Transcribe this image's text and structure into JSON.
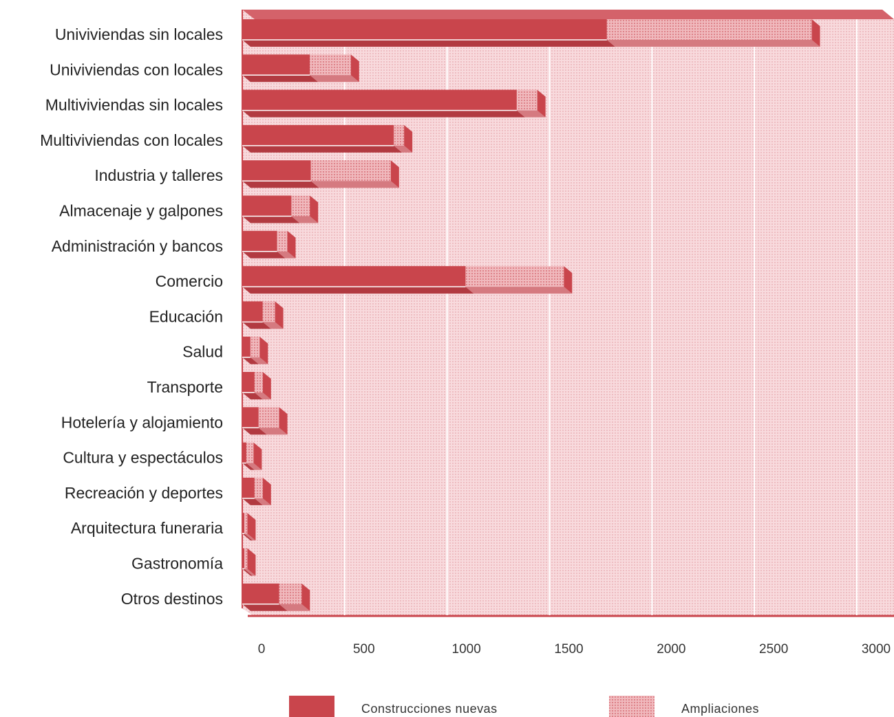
{
  "chart_data": {
    "type": "bar",
    "orientation": "horizontal",
    "stacked": true,
    "three_d": true,
    "categories": [
      "Univiviendas sin locales",
      "Univiviendas con locales",
      "Multiviviendas sin locales",
      "Multiviviendas con locales",
      "Industria y talleres",
      "Almacenaje y galpones",
      "Administración y bancos",
      "Comercio",
      "Educación",
      "Salud",
      "Transporte",
      "Hotelería y alojamiento",
      "Cultura y espectáculos",
      "Recreación y deportes",
      "Arquitectura funeraria",
      "Gastronomía",
      "Otros destinos"
    ],
    "series": [
      {
        "name": "Construcciones nuevas",
        "color": "#c9454c",
        "values": [
          1780,
          330,
          1340,
          740,
          335,
          240,
          170,
          1090,
          100,
          40,
          60,
          80,
          20,
          60,
          10,
          10,
          180
        ]
      },
      {
        "name": "Ampliaciones",
        "color": "#e9a5aa",
        "values": [
          1000,
          200,
          100,
          50,
          390,
          90,
          50,
          480,
          60,
          45,
          40,
          100,
          35,
          40,
          15,
          15,
          110
        ]
      }
    ],
    "xticks": [
      "0",
      "500",
      "1000",
      "1500",
      "2000",
      "2500",
      "3000"
    ],
    "xlim": [
      0,
      3000
    ],
    "grid": true,
    "legend_placement": "bottom",
    "colors": {
      "panel": "#f6d3d6",
      "panel_edge": "#c9454c",
      "grid": "#ffffff"
    }
  }
}
